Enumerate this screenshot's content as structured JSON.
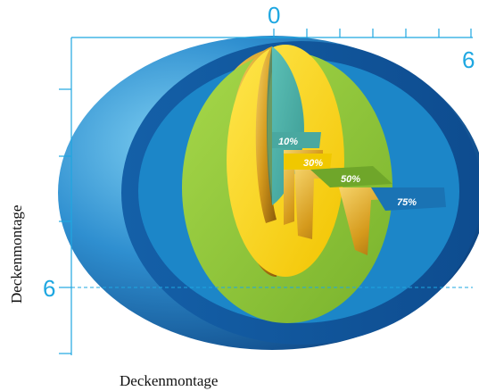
{
  "scale": {
    "top_origin_label": "0",
    "top_end_label": "6",
    "left_marker_label": "6"
  },
  "zones": [
    {
      "label": "10%",
      "color": "#4fb0a8"
    },
    {
      "label": "30%",
      "color": "#f5d30a"
    },
    {
      "label": "50%",
      "color": "#8dc63f"
    },
    {
      "label": "75%",
      "color": "#1c86c8"
    }
  ],
  "captions": {
    "vertical": "Deckenmontage",
    "horizontal": "Deckenmontage"
  },
  "colors": {
    "axis": "#1ea7e1",
    "outer_shell": "#1c6fb4",
    "deep_blue": "#0d4f93",
    "gold": "#c8961c"
  }
}
